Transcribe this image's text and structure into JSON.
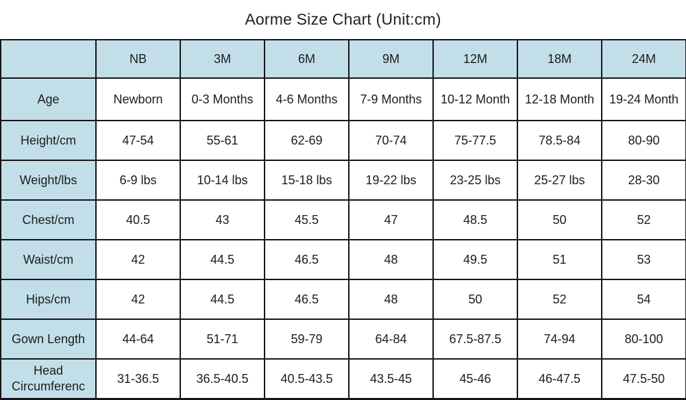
{
  "title": "Aorme Size Chart (Unit:cm)",
  "colors": {
    "header_bg": "#c2dfe9",
    "border": "#161616",
    "text": "#1d1d1d"
  },
  "chart_data": {
    "type": "table",
    "title": "Aorme Size Chart (Unit:cm)",
    "columns": [
      "",
      "NB",
      "3M",
      "6M",
      "9M",
      "12M",
      "18M",
      "24M"
    ],
    "rows": [
      {
        "label": "Age",
        "values": [
          "Newborn",
          "0-3 Months",
          "4-6 Months",
          "7-9 Months",
          "10-12 Month",
          "12-18 Month",
          "19-24 Month"
        ]
      },
      {
        "label": "Height/cm",
        "values": [
          "47-54",
          "55-61",
          "62-69",
          "70-74",
          "75-77.5",
          "78.5-84",
          "80-90"
        ]
      },
      {
        "label": "Weight/lbs",
        "values": [
          "6-9 lbs",
          "10-14 lbs",
          "15-18 lbs",
          "19-22 lbs",
          "23-25 lbs",
          "25-27 lbs",
          "28-30"
        ]
      },
      {
        "label": "Chest/cm",
        "values": [
          "40.5",
          "43",
          "45.5",
          "47",
          "48.5",
          "50",
          "52"
        ]
      },
      {
        "label": "Waist/cm",
        "values": [
          "42",
          "44.5",
          "46.5",
          "48",
          "49.5",
          "51",
          "53"
        ]
      },
      {
        "label": "Hips/cm",
        "values": [
          "42",
          "44.5",
          "46.5",
          "48",
          "50",
          "52",
          "54"
        ]
      },
      {
        "label": "Gown Length",
        "values": [
          "44-64",
          "51-71",
          "59-79",
          "64-84",
          "67.5-87.5",
          "74-94",
          "80-100"
        ]
      },
      {
        "label": "Head Circumferenc",
        "values": [
          "31-36.5",
          "36.5-40.5",
          "40.5-43.5",
          "43.5-45",
          "45-46",
          "46-47.5",
          "47.5-50"
        ]
      }
    ]
  }
}
